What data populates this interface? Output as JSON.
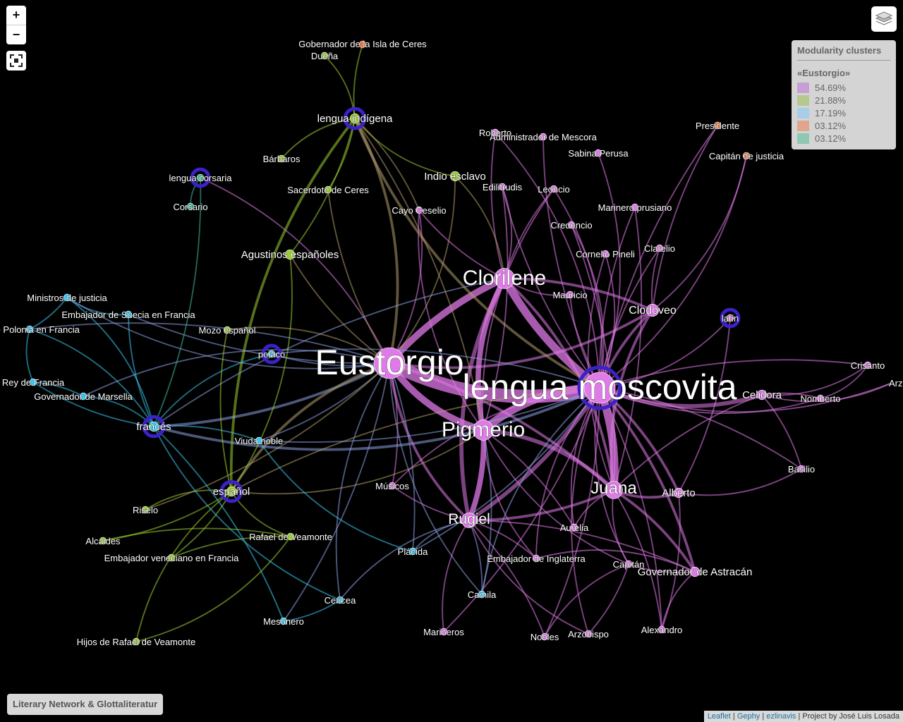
{
  "controls": {
    "zoom_in": "+",
    "zoom_out": "−"
  },
  "legend": {
    "title": "Modularity clusters",
    "subtitle": "«Eustorgio»",
    "items": [
      {
        "label": "54.69%",
        "color": "#c89ed6"
      },
      {
        "label": "21.88%",
        "color": "#b5c98e"
      },
      {
        "label": "17.19%",
        "color": "#a7cde8"
      },
      {
        "label": "03.12%",
        "color": "#e0a58c"
      },
      {
        "label": "03.12%",
        "color": "#8ec8b0"
      }
    ]
  },
  "footer": {
    "title": "Literary Network & Glottaliteratur"
  },
  "attribution": {
    "leaflet": "Leaflet",
    "gephy": "Gephy",
    "ezlinavis": "ezlinavis",
    "project": "Project by José Luis Losada",
    "sep": "|"
  },
  "graph": {
    "clusters": {
      "pink": "#e07ae8",
      "green": "#9acd32",
      "blue": "#38c8f0",
      "orange": "#f07840",
      "teal": "#40b8a0",
      "ring": "#3a22c8"
    },
    "nodes": [
      {
        "id": "eustorgio",
        "label": "Eustorgio",
        "cluster": "pink",
        "weight": 10
      },
      {
        "id": "moscovita",
        "label": "lengua moscovita",
        "cluster": "pink",
        "weight": 10,
        "lang": true
      },
      {
        "id": "clorilene",
        "label": "Clorilene",
        "cluster": "pink",
        "weight": 6
      },
      {
        "id": "pigmerio",
        "label": "Pigmerio",
        "cluster": "pink",
        "weight": 6
      },
      {
        "id": "juana",
        "label": "Juana",
        "cluster": "pink",
        "weight": 5
      },
      {
        "id": "rugiel",
        "label": "Rugiel",
        "cluster": "pink",
        "weight": 4
      },
      {
        "id": "clodoveo",
        "label": "Clodoveo",
        "cluster": "pink",
        "weight": 3
      },
      {
        "id": "latin",
        "label": "latín",
        "cluster": "pink",
        "weight": 1,
        "lang": true
      },
      {
        "id": "roberto",
        "label": "Roberto",
        "cluster": "pink",
        "weight": 1
      },
      {
        "id": "admin",
        "label": "Administrador de Mescora",
        "cluster": "pink",
        "weight": 1
      },
      {
        "id": "sabina",
        "label": "Sabina Perusa",
        "cluster": "pink",
        "weight": 1
      },
      {
        "id": "edilitrudis",
        "label": "Edilitrudis",
        "cluster": "pink",
        "weight": 1
      },
      {
        "id": "leoncio",
        "label": "Leoncio",
        "cluster": "pink",
        "weight": 1
      },
      {
        "id": "cayo",
        "label": "Cayo Ceselio",
        "cluster": "pink",
        "weight": 1
      },
      {
        "id": "marinerop",
        "label": "Marinero prusiano",
        "cluster": "pink",
        "weight": 1
      },
      {
        "id": "credencio",
        "label": "Credencio",
        "cluster": "pink",
        "weight": 1
      },
      {
        "id": "cornelio",
        "label": "Cornelio Pineli",
        "cluster": "pink",
        "weight": 1
      },
      {
        "id": "clarelio",
        "label": "Clarelio",
        "cluster": "pink",
        "weight": 1
      },
      {
        "id": "mauricio",
        "label": "Mauricio",
        "cluster": "pink",
        "weight": 1
      },
      {
        "id": "crisanto",
        "label": "Crisanto",
        "cluster": "pink",
        "weight": 1
      },
      {
        "id": "arzob2",
        "label": "Arzob",
        "cluster": "pink",
        "weight": 1,
        "nodot": true
      },
      {
        "id": "celidora",
        "label": "Celidora",
        "cluster": "pink",
        "weight": 2
      },
      {
        "id": "nomberto",
        "label": "Nomberto",
        "cluster": "pink",
        "weight": 1
      },
      {
        "id": "basilio",
        "label": "Basilio",
        "cluster": "pink",
        "weight": 1
      },
      {
        "id": "alberto",
        "label": "Alberto",
        "cluster": "pink",
        "weight": 2
      },
      {
        "id": "aurelia",
        "label": "Aurelia",
        "cluster": "pink",
        "weight": 1
      },
      {
        "id": "musicos",
        "label": "Músicos",
        "cluster": "pink",
        "weight": 1
      },
      {
        "id": "capitan",
        "label": "Capitán",
        "cluster": "pink",
        "weight": 1
      },
      {
        "id": "govastra",
        "label": "Governador de Astracán",
        "cluster": "pink",
        "weight": 2
      },
      {
        "id": "embingl",
        "label": "Embajador de Inglaterra",
        "cluster": "pink",
        "weight": 1
      },
      {
        "id": "alexandro",
        "label": "Alexandro",
        "cluster": "pink",
        "weight": 1
      },
      {
        "id": "nobles",
        "label": "Nobles",
        "cluster": "pink",
        "weight": 1
      },
      {
        "id": "arzobispo",
        "label": "Arzobispo",
        "cluster": "pink",
        "weight": 1
      },
      {
        "id": "marineros",
        "label": "Marineros",
        "cluster": "pink",
        "weight": 1
      },
      {
        "id": "indigena",
        "label": "lengua indígena",
        "cluster": "green",
        "weight": 2,
        "lang": true
      },
      {
        "id": "gobernador",
        "label": "Gobernador de la Isla de Ceres",
        "cluster": "orange",
        "weight": 1
      },
      {
        "id": "duena",
        "label": "Dueña",
        "cluster": "green",
        "weight": 1
      },
      {
        "id": "barbaros",
        "label": "Bárbaros",
        "cluster": "green",
        "weight": 1
      },
      {
        "id": "sacerdote",
        "label": "Sacerdote de Ceres",
        "cluster": "green",
        "weight": 1
      },
      {
        "id": "indio",
        "label": "Indio esclavo",
        "cluster": "green",
        "weight": 2
      },
      {
        "id": "agustinos",
        "label": "Agustinos españoles",
        "cluster": "green",
        "weight": 2
      },
      {
        "id": "mozo",
        "label": "Mozo español",
        "cluster": "green",
        "weight": 1
      },
      {
        "id": "espanol",
        "label": "español",
        "cluster": "green",
        "weight": 2,
        "lang": true
      },
      {
        "id": "riselo",
        "label": "Riselo",
        "cluster": "green",
        "weight": 1
      },
      {
        "id": "alcaldes",
        "label": "Alcaldes",
        "cluster": "green",
        "weight": 1
      },
      {
        "id": "rafael",
        "label": "Rafael de Veamonte",
        "cluster": "green",
        "weight": 1
      },
      {
        "id": "embven",
        "label": "Embajador veneciano en Francia",
        "cluster": "green",
        "weight": 1
      },
      {
        "id": "hijos",
        "label": "Hijos de Rafael de Veamonte",
        "cluster": "green",
        "weight": 1
      },
      {
        "id": "corsaria",
        "label": "lengua corsaria",
        "cluster": "teal",
        "weight": 1,
        "lang": true
      },
      {
        "id": "corsario",
        "label": "Corsario",
        "cluster": "teal",
        "weight": 1
      },
      {
        "id": "presidente",
        "label": "Presidente",
        "cluster": "orange",
        "weight": 1
      },
      {
        "id": "capjust",
        "label": "Capitán de justicia",
        "cluster": "orange",
        "weight": 1
      },
      {
        "id": "ministros",
        "label": "Ministros de justicia",
        "cluster": "blue",
        "weight": 1
      },
      {
        "id": "embsuecia",
        "label": "Embajador de Suecia en Francia",
        "cluster": "blue",
        "weight": 1
      },
      {
        "id": "embpolonia",
        "label": "or de Polonia en Francia",
        "cluster": "blue",
        "weight": 1
      },
      {
        "id": "polaco",
        "label": "polaco",
        "cluster": "blue",
        "weight": 1,
        "lang": true
      },
      {
        "id": "rey",
        "label": "Rey de Francia",
        "cluster": "blue",
        "weight": 1
      },
      {
        "id": "govmarsella",
        "label": "Governador de Marsella",
        "cluster": "blue",
        "weight": 1
      },
      {
        "id": "frances",
        "label": "francés",
        "cluster": "blue",
        "weight": 2,
        "lang": true
      },
      {
        "id": "viuda",
        "label": "Viuda noble",
        "cluster": "blue",
        "weight": 1
      },
      {
        "id": "placida",
        "label": "Plácida",
        "cluster": "blue",
        "weight": 1
      },
      {
        "id": "camila",
        "label": "Camila",
        "cluster": "blue",
        "weight": 1
      },
      {
        "id": "cericea",
        "label": "Cericea",
        "cluster": "blue",
        "weight": 1
      },
      {
        "id": "mesonero",
        "label": "Mesonero",
        "cluster": "blue",
        "weight": 1
      }
    ],
    "edges": [
      [
        "eustorgio",
        "moscovita",
        10
      ],
      [
        "eustorgio",
        "clorilene",
        5
      ],
      [
        "eustorgio",
        "pigmerio",
        5
      ],
      [
        "moscovita",
        "clorilene",
        6
      ],
      [
        "moscovita",
        "pigmerio",
        6
      ],
      [
        "moscovita",
        "juana",
        6
      ],
      [
        "clorilene",
        "pigmerio",
        4
      ],
      [
        "pigmerio",
        "rugiel",
        4
      ],
      [
        "clorilene",
        "rugiel",
        3
      ],
      [
        "moscovita",
        "rugiel",
        3
      ],
      [
        "juana",
        "pigmerio",
        3
      ],
      [
        "juana",
        "rugiel",
        2
      ],
      [
        "moscovita",
        "celidora",
        3
      ],
      [
        "moscovita",
        "clodoveo",
        2
      ],
      [
        "eustorgio",
        "clodoveo",
        2
      ],
      [
        "eustorgio",
        "juana",
        2
      ],
      [
        "eustorgio",
        "indigena",
        2
      ],
      [
        "eustorgio",
        "frances",
        2
      ],
      [
        "eustorgio",
        "espanol",
        2
      ],
      [
        "eustorgio",
        "polaco",
        1
      ],
      [
        "eustorgio",
        "corsaria",
        1
      ],
      [
        "eustorgio",
        "agustinos",
        1
      ],
      [
        "eustorgio",
        "indio",
        1
      ],
      [
        "eustorgio",
        "sacerdote",
        1
      ],
      [
        "eustorgio",
        "cayo",
        1
      ],
      [
        "eustorgio",
        "viuda",
        1
      ],
      [
        "eustorgio",
        "govmarsella",
        1
      ],
      [
        "eustorgio",
        "embsuecia",
        1
      ],
      [
        "eustorgio",
        "mozo",
        1
      ],
      [
        "eustorgio",
        "musicos",
        1
      ],
      [
        "eustorgio",
        "rugiel",
        2
      ],
      [
        "eustorgio",
        "placida",
        1
      ],
      [
        "eustorgio",
        "cericea",
        1
      ],
      [
        "eustorgio",
        "mesonero",
        1
      ],
      [
        "eustorgio",
        "camila",
        1
      ],
      [
        "eustorgio",
        "riselo",
        1
      ],
      [
        "indigena",
        "duena",
        1
      ],
      [
        "indigena",
        "gobernador",
        1
      ],
      [
        "indigena",
        "barbaros",
        1
      ],
      [
        "indigena",
        "sacerdote",
        1
      ],
      [
        "indigena",
        "indio",
        1
      ],
      [
        "indigena",
        "agustinos",
        1
      ],
      [
        "indigena",
        "espanol",
        2
      ],
      [
        "indigena",
        "cayo",
        1
      ],
      [
        "indigena",
        "moscovita",
        2
      ],
      [
        "indigena",
        "pigmerio",
        1
      ],
      [
        "corsaria",
        "corsario",
        1
      ],
      [
        "corsaria",
        "frances",
        1
      ],
      [
        "frances",
        "ministros",
        1
      ],
      [
        "frances",
        "embsuecia",
        1
      ],
      [
        "frances",
        "embpolonia",
        1
      ],
      [
        "frances",
        "rey",
        1
      ],
      [
        "frances",
        "govmarsella",
        1
      ],
      [
        "frances",
        "viuda",
        1
      ],
      [
        "frances",
        "moscovita",
        2
      ],
      [
        "frances",
        "clorilene",
        1
      ],
      [
        "ministros",
        "embsuecia",
        1
      ],
      [
        "ministros",
        "embpolonia",
        1
      ],
      [
        "embpolonia",
        "rey",
        1
      ],
      [
        "rey",
        "govmarsella",
        1
      ],
      [
        "ministros",
        "eustorgio",
        1
      ],
      [
        "embpolonia",
        "eustorgio",
        1
      ],
      [
        "espanol",
        "riselo",
        1
      ],
      [
        "espanol",
        "alcaldes",
        1
      ],
      [
        "espanol",
        "rafael",
        1
      ],
      [
        "espanol",
        "embven",
        1
      ],
      [
        "espanol",
        "hijos",
        1
      ],
      [
        "espanol",
        "moscovita",
        1
      ],
      [
        "espanol",
        "agustinos",
        1
      ],
      [
        "espanol",
        "mozo",
        1
      ],
      [
        "espanol",
        "pigmerio",
        1
      ],
      [
        "alcaldes",
        "rafael",
        1
      ],
      [
        "hijos",
        "rafael",
        1
      ],
      [
        "embven",
        "rafael",
        1
      ],
      [
        "moscovita",
        "latin",
        1
      ],
      [
        "moscovita",
        "alberto",
        2
      ],
      [
        "moscovita",
        "nomberto",
        1
      ],
      [
        "moscovita",
        "crisanto",
        1
      ],
      [
        "moscovita",
        "arzob2",
        1
      ],
      [
        "moscovita",
        "basilio",
        1
      ],
      [
        "moscovita",
        "capitan",
        1
      ],
      [
        "moscovita",
        "govastra",
        2
      ],
      [
        "moscovita",
        "aurelia",
        1
      ],
      [
        "moscovita",
        "mauricio",
        1
      ],
      [
        "moscovita",
        "cornelio",
        1
      ],
      [
        "moscovita",
        "clarelio",
        1
      ],
      [
        "moscovita",
        "credencio",
        1
      ],
      [
        "moscovita",
        "marinerop",
        1
      ],
      [
        "moscovita",
        "leoncio",
        1
      ],
      [
        "moscovita",
        "edilitrudis",
        1
      ],
      [
        "moscovita",
        "sabina",
        1
      ],
      [
        "moscovita",
        "admin",
        1
      ],
      [
        "moscovita",
        "roberto",
        1
      ],
      [
        "moscovita",
        "presidente",
        1
      ],
      [
        "moscovita",
        "capjust",
        1
      ],
      [
        "moscovita",
        "nobles",
        1
      ],
      [
        "moscovita",
        "arzobispo",
        1
      ],
      [
        "moscovita",
        "alexandro",
        1
      ],
      [
        "moscovita",
        "embingl",
        1
      ],
      [
        "moscovita",
        "marineros",
        1
      ],
      [
        "moscovita",
        "musicos",
        1
      ],
      [
        "moscovita",
        "placida",
        1
      ],
      [
        "moscovita",
        "camila",
        1
      ],
      [
        "moscovita",
        "viuda",
        1
      ],
      [
        "juana",
        "alberto",
        2
      ],
      [
        "juana",
        "govastra",
        2
      ],
      [
        "juana",
        "capitan",
        1
      ],
      [
        "juana",
        "alexandro",
        1
      ],
      [
        "juana",
        "aurelia",
        1
      ],
      [
        "juana",
        "celidora",
        1
      ],
      [
        "juana",
        "clorilene",
        2
      ],
      [
        "rugiel",
        "embingl",
        1
      ],
      [
        "rugiel",
        "marineros",
        1
      ],
      [
        "rugiel",
        "nobles",
        1
      ],
      [
        "rugiel",
        "arzobispo",
        1
      ],
      [
        "rugiel",
        "camila",
        1
      ],
      [
        "rugiel",
        "placida",
        1
      ],
      [
        "rugiel",
        "musicos",
        1
      ],
      [
        "rugiel",
        "cericea",
        1
      ],
      [
        "rugiel",
        "govastra",
        1
      ],
      [
        "celidora",
        "crisanto",
        1
      ],
      [
        "celidora",
        "nomberto",
        1
      ],
      [
        "celidora",
        "arzob2",
        1
      ],
      [
        "celidora",
        "basilio",
        1
      ],
      [
        "nomberto",
        "crisanto",
        1
      ],
      [
        "clorilene",
        "roberto",
        1
      ],
      [
        "clorilene",
        "edilitrudis",
        1
      ],
      [
        "clorilene",
        "leoncio",
        1
      ],
      [
        "clorilene",
        "mauricio",
        1
      ],
      [
        "clorilene",
        "cayo",
        1
      ],
      [
        "clorilene",
        "indio",
        1
      ],
      [
        "clorilene",
        "clodoveo",
        2
      ],
      [
        "clodoveo",
        "juana",
        2
      ],
      [
        "clodoveo",
        "clarelio",
        1
      ],
      [
        "clodoveo",
        "capjust",
        1
      ],
      [
        "clodoveo",
        "presidente",
        1
      ],
      [
        "pigmerio",
        "capitan",
        1
      ],
      [
        "pigmerio",
        "aurelia",
        1
      ],
      [
        "pigmerio",
        "embingl",
        1
      ],
      [
        "pigmerio",
        "camila",
        1
      ],
      [
        "govastra",
        "alexandro",
        1
      ],
      [
        "govastra",
        "capitan",
        1
      ],
      [
        "alberto",
        "basilio",
        1
      ],
      [
        "alberto",
        "alexandro",
        1
      ],
      [
        "capitan",
        "nobles",
        1
      ],
      [
        "capitan",
        "arzobispo",
        1
      ],
      [
        "govastra",
        "embingl",
        1
      ],
      [
        "latin",
        "alberto",
        1
      ],
      [
        "cayo",
        "pigmerio",
        1
      ],
      [
        "edilitrudis",
        "pigmerio",
        1
      ],
      [
        "leoncio",
        "pigmerio",
        1
      ],
      [
        "credencio",
        "juana",
        1
      ],
      [
        "cornelio",
        "juana",
        1
      ],
      [
        "marinerop",
        "juana",
        1
      ],
      [
        "viuda",
        "placida",
        1
      ],
      [
        "cericea",
        "mesonero",
        1
      ],
      [
        "frances",
        "cericea",
        1
      ],
      [
        "frances",
        "mesonero",
        1
      ],
      [
        "polaco",
        "frances",
        1
      ],
      [
        "polaco",
        "moscovita",
        1
      ]
    ]
  }
}
